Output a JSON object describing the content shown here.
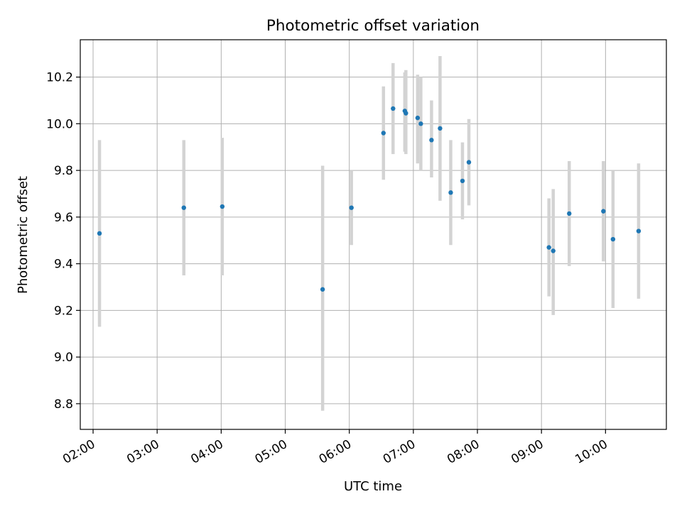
{
  "chart_data": {
    "type": "scatter",
    "title": "Photometric offset variation",
    "xlabel": "UTC time",
    "ylabel": "Photometric offset",
    "x_unit": "UTC hour of day",
    "xlim": [
      "01:48",
      "10:57"
    ],
    "ylim": [
      8.69,
      10.36
    ],
    "x_ticks": [
      "02:00",
      "03:00",
      "04:00",
      "05:00",
      "06:00",
      "07:00",
      "08:00",
      "09:00",
      "10:00"
    ],
    "y_ticks": [
      8.8,
      9.0,
      9.2,
      9.4,
      9.6,
      9.8,
      10.0,
      10.2
    ],
    "grid": true,
    "marker_color": "#1f77b4",
    "errorbar_color": "#d3d3d3",
    "points": [
      {
        "time": "02:06",
        "y": 9.53,
        "ylow": 9.13,
        "yhigh": 9.93
      },
      {
        "time": "03:25",
        "y": 9.64,
        "ylow": 9.35,
        "yhigh": 9.93
      },
      {
        "time": "04:01",
        "y": 9.645,
        "ylow": 9.35,
        "yhigh": 9.94
      },
      {
        "time": "05:35",
        "y": 9.29,
        "ylow": 8.77,
        "yhigh": 9.82
      },
      {
        "time": "06:02",
        "y": 9.64,
        "ylow": 9.48,
        "yhigh": 9.8
      },
      {
        "time": "06:32",
        "y": 9.96,
        "ylow": 9.76,
        "yhigh": 10.16
      },
      {
        "time": "06:41",
        "y": 10.065,
        "ylow": 9.87,
        "yhigh": 10.26
      },
      {
        "time": "06:53",
        "y": 10.045,
        "ylow": 9.87,
        "yhigh": 10.23
      },
      {
        "time": "06:52",
        "y": 10.055,
        "ylow": 9.88,
        "yhigh": 10.22
      },
      {
        "time": "07:04",
        "y": 10.025,
        "ylow": 9.83,
        "yhigh": 10.21
      },
      {
        "time": "07:07",
        "y": 10.0,
        "ylow": 9.8,
        "yhigh": 10.2
      },
      {
        "time": "07:17",
        "y": 9.93,
        "ylow": 9.77,
        "yhigh": 10.1
      },
      {
        "time": "07:25",
        "y": 9.98,
        "ylow": 9.67,
        "yhigh": 10.29
      },
      {
        "time": "07:35",
        "y": 9.705,
        "ylow": 9.48,
        "yhigh": 9.93
      },
      {
        "time": "07:46",
        "y": 9.755,
        "ylow": 9.59,
        "yhigh": 9.92
      },
      {
        "time": "07:52",
        "y": 9.835,
        "ylow": 9.65,
        "yhigh": 10.02
      },
      {
        "time": "09:07",
        "y": 9.47,
        "ylow": 9.26,
        "yhigh": 9.68
      },
      {
        "time": "09:11",
        "y": 9.455,
        "ylow": 9.18,
        "yhigh": 9.72
      },
      {
        "time": "09:26",
        "y": 9.615,
        "ylow": 9.39,
        "yhigh": 9.84
      },
      {
        "time": "09:58",
        "y": 9.625,
        "ylow": 9.41,
        "yhigh": 9.84
      },
      {
        "time": "10:07",
        "y": 9.505,
        "ylow": 9.21,
        "yhigh": 9.8
      },
      {
        "time": "10:31",
        "y": 9.54,
        "ylow": 9.25,
        "yhigh": 9.83
      }
    ]
  }
}
